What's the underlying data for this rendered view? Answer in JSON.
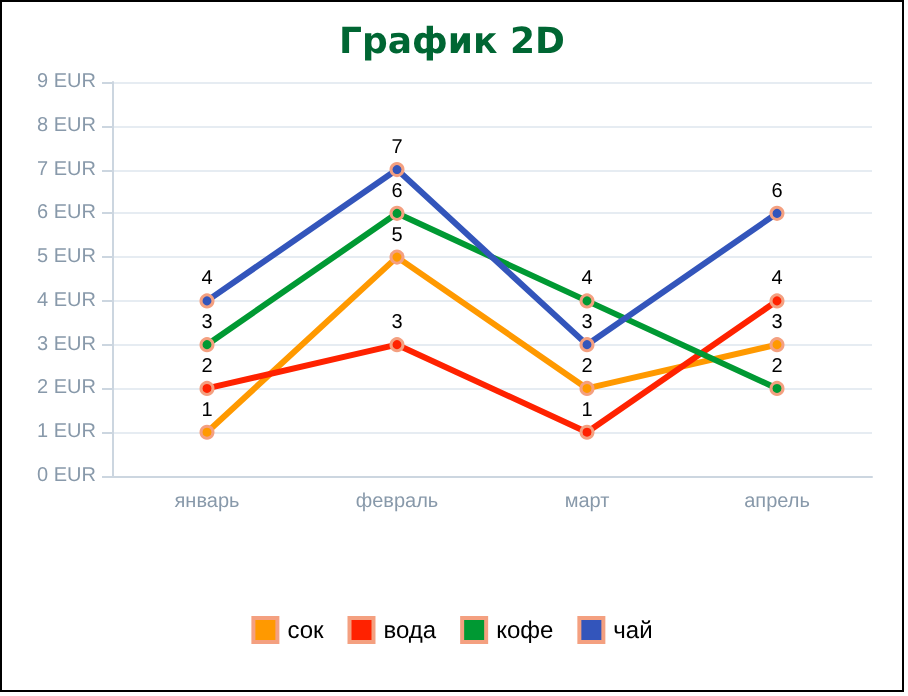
{
  "chart_data": {
    "type": "line",
    "title": "График 2D",
    "categories": [
      "январь",
      "февраль",
      "март",
      "апрель"
    ],
    "series": [
      {
        "name": "сок",
        "color": "#ff9900",
        "values": [
          1,
          5,
          2,
          3
        ]
      },
      {
        "name": "вода",
        "color": "#ff2200",
        "values": [
          2,
          3,
          1,
          4
        ]
      },
      {
        "name": "кофе",
        "color": "#009933",
        "values": [
          3,
          6,
          4,
          2
        ]
      },
      {
        "name": "чай",
        "color": "#3355bb",
        "values": [
          4,
          7,
          3,
          6
        ]
      }
    ],
    "ylim": [
      0,
      9
    ],
    "yticks": [
      {
        "value": 0,
        "label": "0 EUR"
      },
      {
        "value": 1,
        "label": "1 EUR"
      },
      {
        "value": 2,
        "label": "2 EUR"
      },
      {
        "value": 3,
        "label": "3 EUR"
      },
      {
        "value": 4,
        "label": "4 EUR"
      },
      {
        "value": 5,
        "label": "5 EUR"
      },
      {
        "value": 6,
        "label": "6 EUR"
      },
      {
        "value": 7,
        "label": "7 EUR"
      },
      {
        "value": 8,
        "label": "8 EUR"
      },
      {
        "value": 9,
        "label": "9 EUR"
      }
    ],
    "grid": "y",
    "legend": "bottom",
    "marker": "circle",
    "line_style": "solid",
    "data_labels": true
  }
}
